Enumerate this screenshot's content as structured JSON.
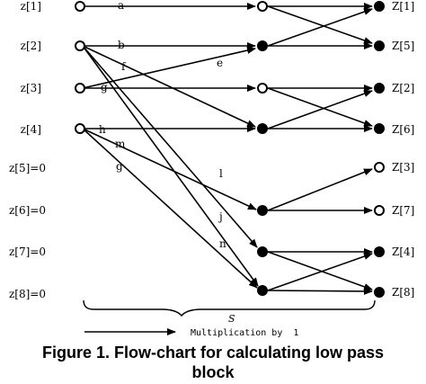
{
  "inputs": [
    "z[1]",
    "z[2]",
    "z[3]",
    "z[4]",
    "z[5]=0",
    "z[6]=0",
    "z[7]=0",
    "z[8]=0"
  ],
  "outputs": [
    "Z[1]",
    "Z[5]",
    "Z[2]",
    "Z[6]",
    "Z[3]",
    "Z[7]",
    "Z[4]",
    "Z[8]"
  ],
  "coefficients": {
    "a": "a",
    "b": "b",
    "f": "f",
    "g1": "g",
    "e": "e",
    "h": "h",
    "m": "m",
    "g2": "g",
    "l": "l",
    "j": "j",
    "n": "n"
  },
  "brace_label": "S",
  "legend": "Multiplication by  1",
  "caption": {
    "line1": "Figure 1. Flow-chart for calculating low pass",
    "line2": "block"
  }
}
